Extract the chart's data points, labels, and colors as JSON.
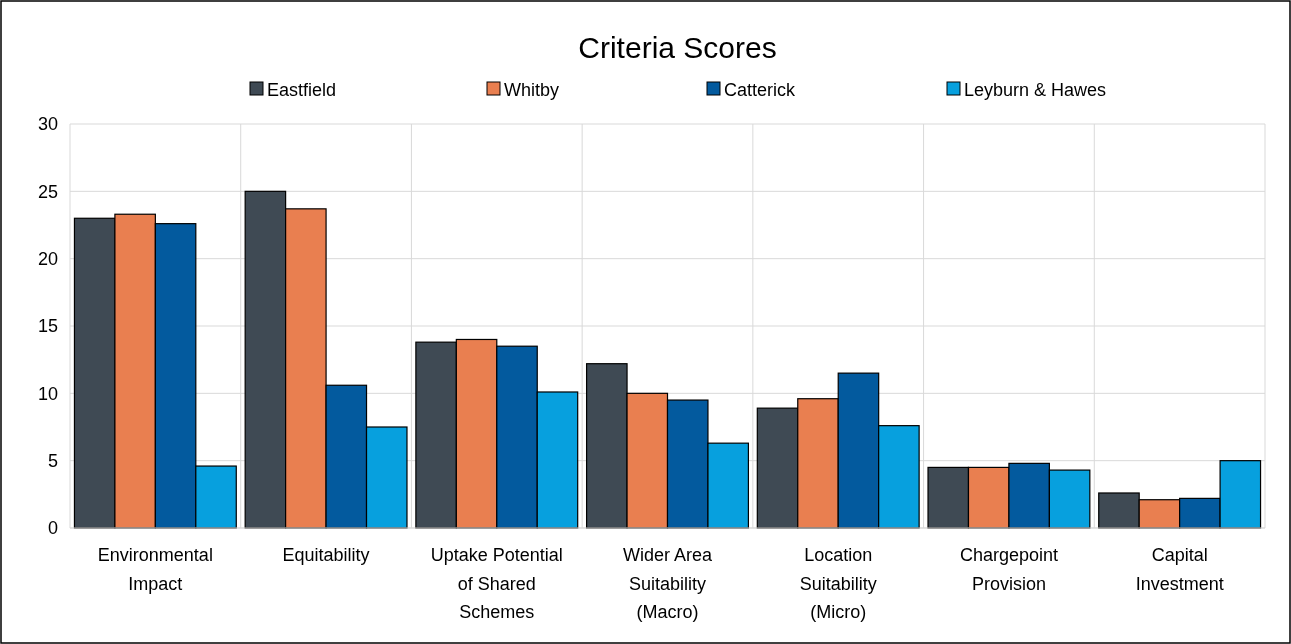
{
  "chart_data": {
    "type": "bar",
    "title": "Criteria Scores",
    "categories": [
      "Environmental Impact",
      "Equitability",
      "Uptake Potential of Shared Schemes",
      "Wider Area Suitability (Macro)",
      "Location Suitability (Micro)",
      "Chargepoint Provision",
      "Capital Investment"
    ],
    "series": [
      {
        "name": "Eastfield",
        "color": "#3f4a54",
        "values": [
          23.0,
          25.0,
          13.8,
          12.2,
          8.9,
          4.5,
          2.6
        ]
      },
      {
        "name": "Whitby",
        "color": "#e97f50",
        "values": [
          23.3,
          23.7,
          14.0,
          10.0,
          9.6,
          4.5,
          2.1
        ]
      },
      {
        "name": "Catterick",
        "color": "#035a9e",
        "values": [
          22.6,
          10.6,
          13.5,
          9.5,
          11.5,
          4.8,
          2.2
        ]
      },
      {
        "name": "Leyburn & Hawes",
        "color": "#07a0de",
        "values": [
          4.6,
          7.5,
          10.1,
          6.3,
          7.6,
          4.3,
          5.0
        ]
      }
    ],
    "ylim": [
      0,
      30
    ],
    "yticks": [
      0,
      5,
      10,
      15,
      20,
      25,
      30
    ],
    "grid": true,
    "legend": "top"
  }
}
